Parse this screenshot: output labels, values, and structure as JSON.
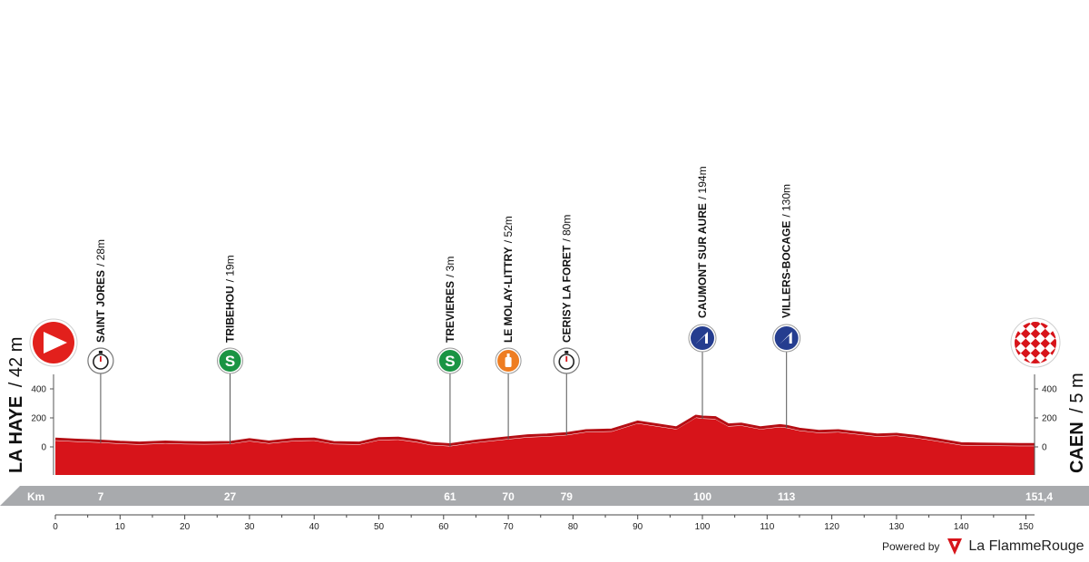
{
  "chart_data": {
    "type": "area",
    "title": "",
    "xlabel": "Km",
    "ylabel": "",
    "xlim": [
      0,
      151.4
    ],
    "ylim": [
      -200,
      500
    ],
    "x_ticks": [
      0,
      10,
      20,
      30,
      40,
      50,
      60,
      70,
      80,
      90,
      100,
      110,
      120,
      130,
      140,
      150
    ],
    "y_ticks": [
      0,
      200,
      400
    ],
    "start": {
      "name": "LA HAYE",
      "altitude": "/ 42 m"
    },
    "finish": {
      "name": "CAEN",
      "altitude": "/ 5 m",
      "distance_label": "151,4"
    },
    "waypoints": [
      {
        "km": 7,
        "km_label": "7",
        "name": "SAINT JORES",
        "altitude": "/ 28m",
        "marker": "timer"
      },
      {
        "km": 27,
        "km_label": "27",
        "name": "TRIBEHOU",
        "altitude": "/ 19m",
        "marker": "sprint"
      },
      {
        "km": 61,
        "km_label": "61",
        "name": "TREVIERES",
        "altitude": "/ 3m",
        "marker": "sprint"
      },
      {
        "km": 70,
        "km_label": "70",
        "name": "LE MOLAY-LITTRY",
        "altitude": "/ 52m",
        "marker": "feed"
      },
      {
        "km": 79,
        "km_label": "79",
        "name": "CERISY LA FORET",
        "altitude": "/ 80m",
        "marker": "timer"
      },
      {
        "km": 100,
        "km_label": "100",
        "name": "CAUMONT SUR AURE",
        "altitude": "/ 194m",
        "marker": "climb"
      },
      {
        "km": 113,
        "km_label": "113",
        "name": "VILLERS-BOCAGE",
        "altitude": "/ 130m",
        "marker": "climb"
      }
    ],
    "profile": {
      "x": [
        0,
        3,
        7,
        10,
        13,
        17,
        20,
        23,
        27,
        30,
        33,
        37,
        40,
        43,
        47,
        50,
        53,
        56,
        58,
        61,
        65,
        70,
        73,
        76,
        79,
        82,
        86,
        90,
        93,
        96,
        99,
        100,
        102,
        104,
        106,
        109,
        112,
        113,
        115,
        118,
        121,
        124,
        127,
        130,
        133,
        136,
        140,
        143,
        146,
        149,
        151.4
      ],
      "y": [
        42,
        35,
        28,
        20,
        15,
        22,
        18,
        16,
        19,
        38,
        22,
        40,
        42,
        18,
        15,
        45,
        48,
        30,
        12,
        3,
        28,
        52,
        65,
        70,
        80,
        100,
        105,
        160,
        140,
        120,
        200,
        194,
        190,
        140,
        145,
        120,
        135,
        130,
        110,
        95,
        100,
        85,
        70,
        75,
        60,
        40,
        10,
        8,
        6,
        5,
        5
      ]
    },
    "legend": "none",
    "grid": false
  },
  "colors": {
    "profile_fill": "#d7141a",
    "start_marker": "#e2201c",
    "sprint_marker": "#1a9443",
    "feed_marker": "#ee7d22",
    "climb_marker": "#253d8f",
    "km_bar": "#a8aaad"
  },
  "icons": {
    "start": "play-icon",
    "finish": "checkered-flag-icon",
    "timer": "stopwatch-icon",
    "sprint": "sprint-s-icon",
    "feed": "feed-bottle-icon",
    "climb": "climb-arrow-icon"
  },
  "branding": {
    "powered_by": "Powered by",
    "name": "La FlammeRouge"
  }
}
